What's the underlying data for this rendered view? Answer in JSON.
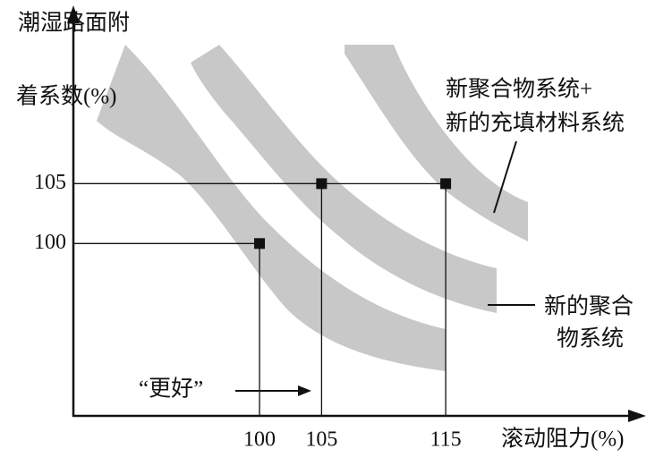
{
  "chart_data": {
    "type": "scatter",
    "y_label_lines": [
      "潮湿路面附",
      "着系数(%)"
    ],
    "x_label": "滚动阻力(%)",
    "x": [
      100,
      105,
      115
    ],
    "series": [
      {
        "color": "#111111",
        "values": [
          100,
          105,
          105
        ]
      }
    ],
    "xlim": [
      85,
      131
    ],
    "ylim": [
      85.6,
      119.6
    ],
    "xticks": [
      100,
      105,
      115
    ],
    "yticks": [
      100,
      105
    ],
    "annotations": {
      "new_polymer_filler": [
        "新聚合物系统+",
        "新的充填材料系统"
      ],
      "new_polymer": [
        "新的聚合",
        "物系统"
      ],
      "better": "“更好”"
    }
  }
}
